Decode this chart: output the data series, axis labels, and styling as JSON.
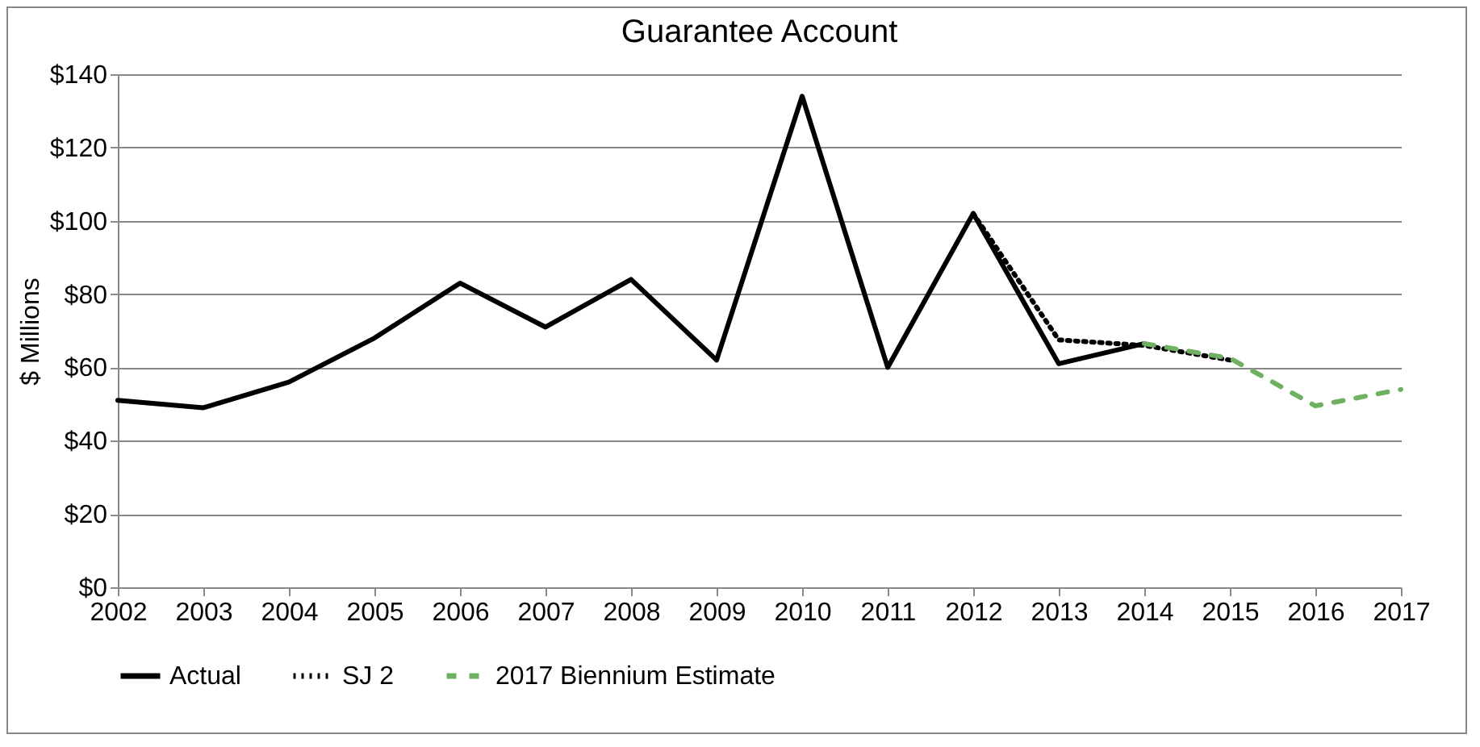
{
  "chart_data": {
    "type": "line",
    "title": "Guarantee Account",
    "ylabel": "$ Millions",
    "xlim": [
      2002,
      2017
    ],
    "xticks": [
      2002,
      2003,
      2004,
      2005,
      2006,
      2007,
      2008,
      2009,
      2010,
      2011,
      2012,
      2013,
      2014,
      2015,
      2016,
      2017
    ],
    "ylim": [
      0,
      140
    ],
    "yticks": [
      {
        "value": 0,
        "label": "$0"
      },
      {
        "value": 20,
        "label": "$20"
      },
      {
        "value": 40,
        "label": "$40"
      },
      {
        "value": 60,
        "label": "$60"
      },
      {
        "value": 80,
        "label": "$80"
      },
      {
        "value": 100,
        "label": "$100"
      },
      {
        "value": 120,
        "label": "$120"
      },
      {
        "value": 140,
        "label": "$140"
      }
    ],
    "grid": "y",
    "legend": "bottom",
    "series": [
      {
        "name": "Actual",
        "color": "#000000",
        "line_style": "solid",
        "x": [
          2002,
          2003,
          2004,
          2005,
          2006,
          2007,
          2008,
          2009,
          2010,
          2011,
          2012,
          2013,
          2014
        ],
        "values": [
          51,
          49,
          56,
          68,
          83,
          71,
          84,
          62,
          134,
          60,
          102,
          61,
          66.5
        ]
      },
      {
        "name": "SJ 2",
        "color": "#000000",
        "line_style": "dotted",
        "x": [
          2012,
          2013,
          2014,
          2015
        ],
        "values": [
          102,
          67.5,
          66,
          62
        ]
      },
      {
        "name": "2017 Biennium Estimate",
        "color": "#70b062",
        "line_style": "dashed",
        "x": [
          2014,
          2015,
          2016,
          2017
        ],
        "values": [
          66.5,
          62.5,
          49.5,
          54
        ]
      }
    ]
  }
}
